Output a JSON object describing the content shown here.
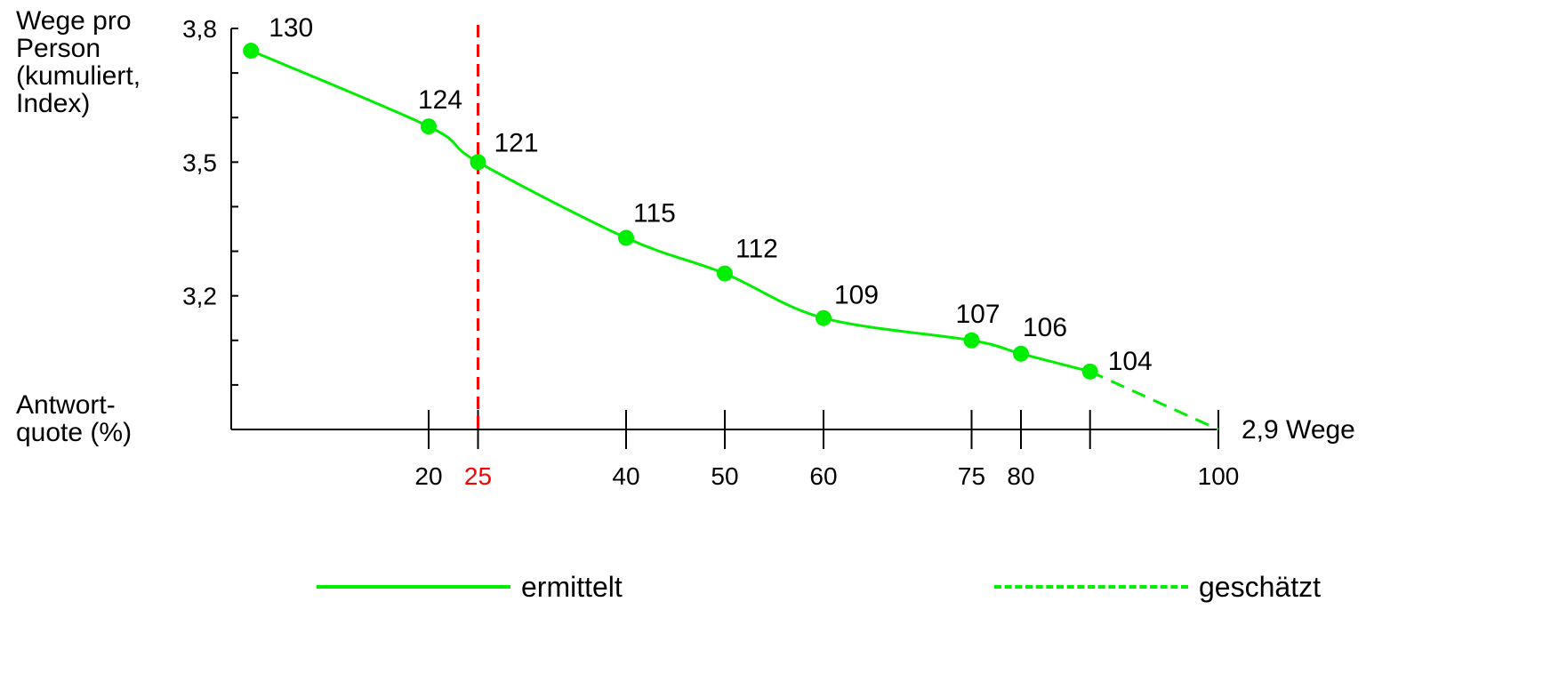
{
  "chart_data": {
    "type": "line",
    "ylabel": "Wege pro\nPerson\n(kumuliert,\nIndex)",
    "xlabel": "Antwort-\nquote (%)",
    "y_ticks": [
      "3,8",
      "3,5",
      "3,2"
    ],
    "y_tick_values": [
      3.8,
      3.5,
      3.2
    ],
    "x_ticks": [
      "20",
      "25",
      "40",
      "50",
      "60",
      "75",
      "80",
      "100"
    ],
    "x_tick_values": [
      20,
      25,
      40,
      50,
      60,
      75,
      80,
      100
    ],
    "highlight_x": 25,
    "highlight_color": "#ff0000",
    "line_color": "#00ee00",
    "series": [
      {
        "name": "ermittelt",
        "style": "solid",
        "points": [
          {
            "x": 2,
            "y": 3.75,
            "label": "130"
          },
          {
            "x": 20,
            "y": 3.58,
            "label": "124"
          },
          {
            "x": 25,
            "y": 3.5,
            "label": "121"
          },
          {
            "x": 40,
            "y": 3.33,
            "label": "115"
          },
          {
            "x": 50,
            "y": 3.25,
            "label": "112"
          },
          {
            "x": 60,
            "y": 3.15,
            "label": "109"
          },
          {
            "x": 75,
            "y": 3.1,
            "label": "107"
          },
          {
            "x": 80,
            "y": 3.07,
            "label": "106"
          },
          {
            "x": 87,
            "y": 3.03,
            "label": "104"
          }
        ]
      },
      {
        "name": "geschätzt",
        "style": "dashed",
        "points": [
          {
            "x": 87,
            "y": 3.03
          },
          {
            "x": 100,
            "y": 2.9
          }
        ]
      }
    ],
    "end_annotation": "2,9 Wege",
    "xlim": [
      0,
      100
    ],
    "ylim": [
      2.9,
      3.8
    ]
  }
}
